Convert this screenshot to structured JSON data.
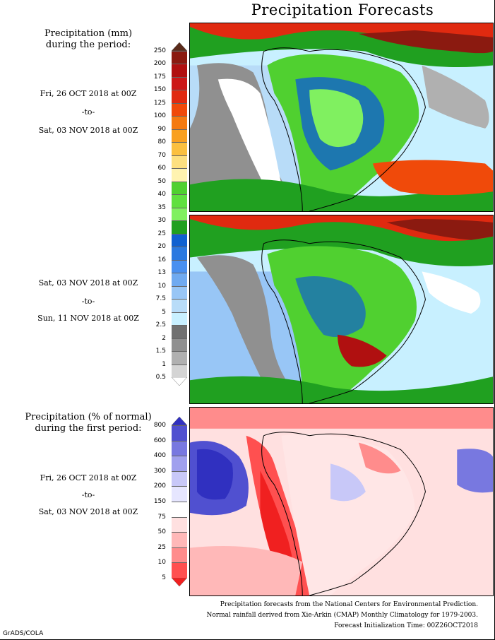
{
  "title": "Precipitation Forecasts",
  "section1": {
    "header_line1": "Precipitation (mm)",
    "header_line2": "during the period:",
    "start": "Fri, 26 OCT 2018 at 00Z",
    "to": "-to-",
    "end": "Sat, 03 NOV 2018 at 00Z"
  },
  "section2": {
    "start": "Sat, 03 NOV 2018 at 00Z",
    "to": "-to-",
    "end": "Sun, 11 NOV 2018 at 00Z"
  },
  "section3": {
    "header_line1": "Precipitation (% of normal)",
    "header_line2": "during the first period:",
    "start": "Fri, 26 OCT 2018 at 00Z",
    "to": "-to-",
    "end": "Sat, 03 NOV 2018 at 00Z"
  },
  "mm_scale": {
    "ticks": [
      "250",
      "200",
      "175",
      "150",
      "125",
      "100",
      "90",
      "80",
      "70",
      "60",
      "50",
      "40",
      "35",
      "30",
      "25",
      "20",
      "16",
      "13",
      "10",
      "7.5",
      "5",
      "2.5",
      "2",
      "1.5",
      "1",
      "0.5"
    ],
    "colors": [
      "#5a2a1a",
      "#8b1a10",
      "#b01010",
      "#cc1818",
      "#e02a10",
      "#f04a0a",
      "#f57a10",
      "#f9a020",
      "#fbc040",
      "#fde080",
      "#fff3b0",
      "#50d030",
      "#60e040",
      "#80f060",
      "#20a020",
      "#1060d0",
      "#2a78e0",
      "#4a90f0",
      "#70aaf0",
      "#98c6f6",
      "#b8dcf8",
      "#c8f0ff",
      "#707070",
      "#909090",
      "#b0b0b0",
      "#d4d4d4",
      "#ffffff"
    ]
  },
  "pct_scale": {
    "ticks": [
      "800",
      "600",
      "400",
      "300",
      "200",
      "150",
      "75",
      "50",
      "25",
      "10",
      "5"
    ],
    "colors": [
      "#3030c0",
      "#5050d0",
      "#7878e0",
      "#a0a0ee",
      "#c8c8f8",
      "#e6e6ff",
      "#ffffff",
      "#ffe0e0",
      "#ffb8b8",
      "#ff8c8c",
      "#ff5050",
      "#f02020"
    ]
  },
  "footer": {
    "line1": "Precipitation forecasts from the National Centers for Environmental Prediction.",
    "line2": "Normal rainfall derived from Xie-Arkin (CMAP) Monthly Climatology for 1979-2003.",
    "line3": "Forecast Initialization Time: 00Z26OCT2018"
  },
  "credit": "GrADS/COLA"
}
